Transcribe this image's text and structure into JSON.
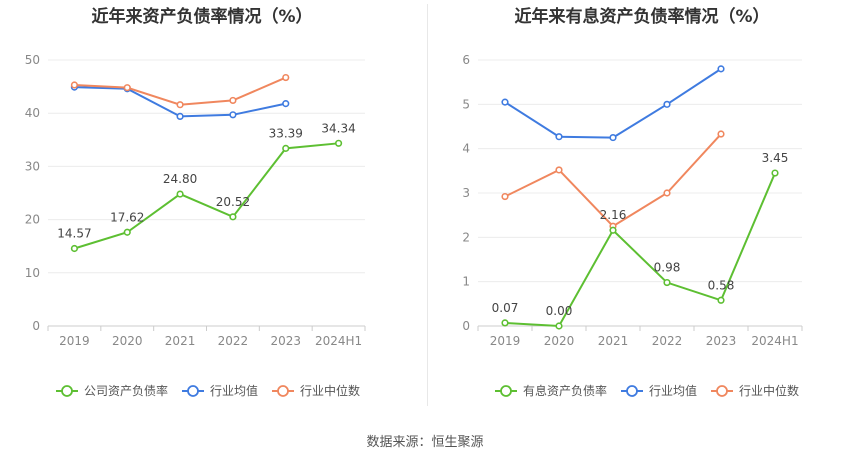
{
  "footer": "数据来源：恒生聚源",
  "chart_data": [
    {
      "type": "line",
      "title": "近年来资产负债率情况（%）",
      "categories": [
        "2019",
        "2020",
        "2021",
        "2022",
        "2023",
        "2024H1"
      ],
      "ylim": [
        0,
        50
      ],
      "yticks": [
        0,
        10,
        20,
        30,
        40,
        50
      ],
      "grid": true,
      "legend_position": "bottom",
      "series": [
        {
          "name": "公司资产负债率",
          "color": "#5dbf32",
          "values": [
            14.57,
            17.62,
            24.8,
            20.52,
            33.39,
            34.34
          ],
          "labels": [
            "14.57",
            "17.62",
            "24.80",
            "20.52",
            "33.39",
            "34.34"
          ]
        },
        {
          "name": "行业均值",
          "color": "#3f7be0",
          "values": [
            44.9,
            44.6,
            39.4,
            39.7,
            41.8,
            null
          ]
        },
        {
          "name": "行业中位数",
          "color": "#f0875e",
          "values": [
            45.3,
            44.8,
            41.6,
            42.4,
            46.7,
            null
          ]
        }
      ]
    },
    {
      "type": "line",
      "title": "近年来有息资产负债率情况（%）",
      "categories": [
        "2019",
        "2020",
        "2021",
        "2022",
        "2023",
        "2024H1"
      ],
      "ylim": [
        0,
        6
      ],
      "yticks": [
        0,
        1,
        2,
        3,
        4,
        5,
        6
      ],
      "grid": true,
      "legend_position": "bottom",
      "series": [
        {
          "name": "有息资产负债率",
          "color": "#5dbf32",
          "values": [
            0.07,
            0.0,
            2.16,
            0.98,
            0.58,
            3.45
          ],
          "labels": [
            "0.07",
            "0.00",
            "2.16",
            "0.98",
            "0.58",
            "3.45"
          ]
        },
        {
          "name": "行业均值",
          "color": "#3f7be0",
          "values": [
            5.05,
            4.27,
            4.25,
            5.0,
            5.8,
            null
          ]
        },
        {
          "name": "行业中位数",
          "color": "#f0875e",
          "values": [
            2.92,
            3.52,
            2.25,
            3.0,
            4.33,
            null
          ]
        }
      ]
    }
  ]
}
